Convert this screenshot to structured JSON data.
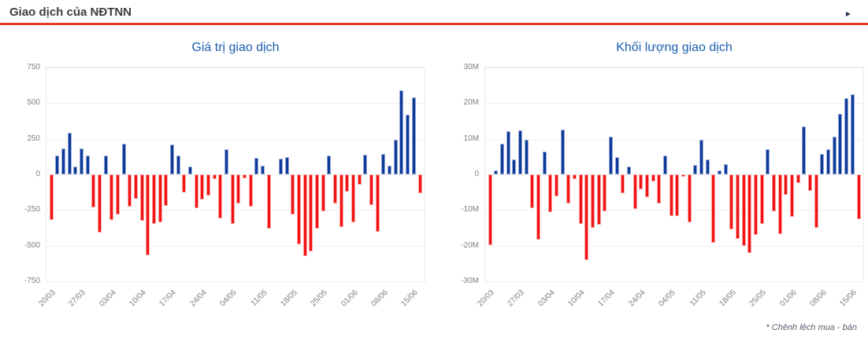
{
  "header": {
    "title": "Giao dịch của NĐTNN",
    "expand_icon": "▶"
  },
  "footnote": "* Chênh lệch mua - bán",
  "colors": {
    "positive_bar": "#0c3a98",
    "negative_bar": "#f21313",
    "accent_underline": "#e3392a",
    "chart_title": "#1a5fb0"
  },
  "chart_data": [
    {
      "type": "bar",
      "title": "Giá trị giao dịch",
      "ylim": [
        -750,
        750
      ],
      "ytick_values": [
        750,
        500,
        250,
        0,
        -250,
        -500,
        -750
      ],
      "ytick_labels": [
        "750",
        "500",
        "250",
        "0",
        "-250",
        "-500",
        "-750"
      ],
      "x_tick_labels": [
        "20/03",
        "27/03",
        "03/04",
        "10/04",
        "17/04",
        "24/04",
        "04/05",
        "11/05",
        "18/05",
        "25/05",
        "01/06",
        "08/06",
        "15/06"
      ],
      "x_tick_step": 5,
      "grid": true,
      "legend": "none",
      "values": [
        -320,
        130,
        180,
        295,
        55,
        180,
        135,
        -230,
        -410,
        130,
        -320,
        -280,
        215,
        -225,
        -170,
        -325,
        -570,
        -345,
        -335,
        -220,
        210,
        130,
        -125,
        55,
        -235,
        -175,
        -150,
        -35,
        -310,
        175,
        -345,
        -205,
        -30,
        -225,
        115,
        60,
        -380,
        0,
        110,
        120,
        -280,
        -490,
        -575,
        -540,
        -380,
        -260,
        135,
        -205,
        -370,
        -120,
        -335,
        -70,
        140,
        -215,
        -405,
        145,
        60,
        240,
        590,
        420,
        540,
        -130
      ]
    },
    {
      "type": "bar",
      "title": "Khối lượng giao dịch",
      "ylim": [
        -30,
        30
      ],
      "ytick_values": [
        30,
        20,
        10,
        0,
        -10,
        -20,
        -30
      ],
      "ytick_labels": [
        "30M",
        "20M",
        "10M",
        "0",
        "-10M",
        "-20M",
        "-30M"
      ],
      "x_tick_labels": [
        "20/03",
        "27/03",
        "03/04",
        "10/04",
        "17/04",
        "24/04",
        "04/05",
        "11/05",
        "18/05",
        "25/05",
        "01/06",
        "08/06",
        "15/06"
      ],
      "x_tick_step": 5,
      "grid": true,
      "legend": "none",
      "values": [
        -19.8,
        1,
        8.5,
        12.2,
        4.2,
        12.4,
        9.6,
        -9.4,
        -18.3,
        6.4,
        -10.6,
        -6.1,
        12.6,
        -8.1,
        -1.4,
        -13.8,
        -24,
        -15,
        -14.2,
        -10.4,
        10.6,
        4.8,
        -5.3,
        2.1,
        -9.7,
        -4.2,
        -6.4,
        -2,
        -8.2,
        5.2,
        -11.6,
        -11.6,
        -0.7,
        -13.5,
        2.7,
        9.7,
        4.3,
        -19.3,
        1.1,
        2.8,
        -15.5,
        -18,
        -20,
        -22,
        -17,
        -14,
        7,
        -10.3,
        -16.7,
        -5.7,
        -12,
        -2.5,
        13.5,
        -4.6,
        -15,
        5.8,
        7,
        10.5,
        17,
        21.5,
        22.5,
        -12.5
      ]
    }
  ]
}
